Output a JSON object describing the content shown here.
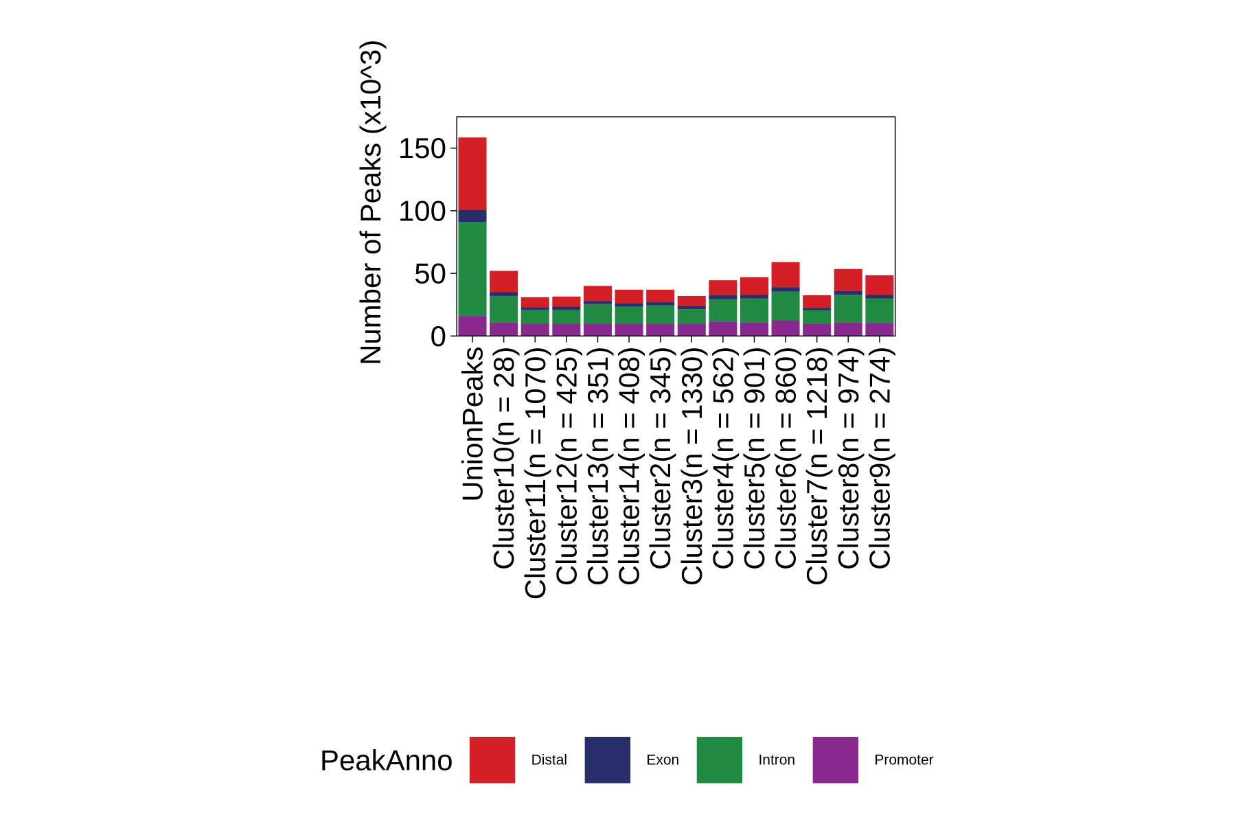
{
  "chart_data": {
    "type": "bar",
    "stacked": true,
    "title": "",
    "xlabel": "",
    "ylabel": "Number of Peaks (x10^3)",
    "ylim": [
      0,
      175
    ],
    "yticks": [
      0,
      50,
      100,
      150
    ],
    "categories": [
      "UnionPeaks",
      "Cluster10(n = 28)",
      "Cluster11(n = 1070)",
      "Cluster12(n = 425)",
      "Cluster13(n = 351)",
      "Cluster14(n = 408)",
      "Cluster2(n = 345)",
      "Cluster3(n = 1330)",
      "Cluster4(n = 562)",
      "Cluster5(n = 901)",
      "Cluster6(n = 860)",
      "Cluster7(n = 1218)",
      "Cluster8(n = 974)",
      "Cluster9(n = 274)"
    ],
    "series": [
      {
        "name": "Promoter",
        "color": "#89288F",
        "values": [
          16,
          11,
          10,
          10,
          10,
          10,
          10,
          10,
          11.5,
          11,
          12.5,
          9.5,
          11,
          10.5
        ]
      },
      {
        "name": "Intron",
        "color": "#208A42",
        "values": [
          75,
          21,
          11,
          11,
          15.5,
          13.5,
          14.5,
          11.5,
          18,
          19,
          23,
          11,
          22,
          19.5
        ]
      },
      {
        "name": "Exon",
        "color": "#272E6A",
        "values": [
          9.5,
          3,
          2,
          2.5,
          2.5,
          2.5,
          2.5,
          2.5,
          3,
          3,
          3.5,
          2,
          3,
          3
        ]
      },
      {
        "name": "Distal",
        "color": "#D51F26",
        "values": [
          58,
          17,
          8,
          8,
          12,
          11,
          10,
          8,
          12,
          14,
          20,
          10,
          17.5,
          15.5
        ]
      }
    ],
    "legend": {
      "title": "PeakAnno",
      "position": "bottom",
      "items": [
        "Distal",
        "Exon",
        "Intron",
        "Promoter"
      ]
    },
    "grid": false
  }
}
